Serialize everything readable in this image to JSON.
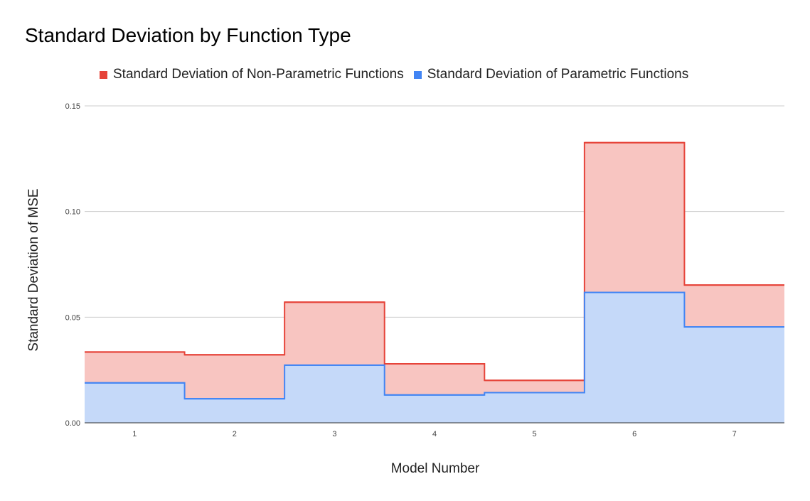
{
  "chart_data": {
    "type": "area",
    "title": "Standard Deviation by Function Type",
    "xlabel": "Model Number",
    "ylabel": "Standard Deviation of MSE",
    "categories": [
      "1",
      "2",
      "3",
      "4",
      "5",
      "6",
      "7"
    ],
    "y_tick_labels": [
      "0.00",
      "0.05",
      "0.10",
      "0.15"
    ],
    "y_ticks": [
      0,
      0.05,
      0.1,
      0.15
    ],
    "ylim": [
      0,
      0.15
    ],
    "step": true,
    "stacked": false,
    "grid": true,
    "legend_position": "top",
    "series": [
      {
        "name": "Standard Deviation of Non-Parametric Functions",
        "values": [
          0.0335,
          0.0322,
          0.0571,
          0.0279,
          0.0201,
          0.1326,
          0.0652
        ],
        "color": "#e6443a",
        "fill": "#f8c5c1"
      },
      {
        "name": "Standard Deviation of Parametric Functions",
        "values": [
          0.0189,
          0.0114,
          0.0273,
          0.0132,
          0.0143,
          0.0617,
          0.0454
        ],
        "color": "#4285f4",
        "fill": "#c5d9f9"
      }
    ]
  }
}
